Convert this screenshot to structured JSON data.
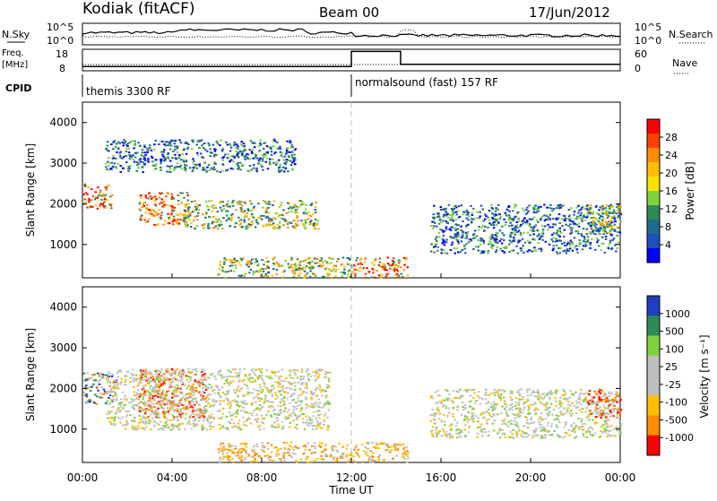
{
  "header": {
    "station": "Kodiak (fitACF)",
    "beam": "Beam 00",
    "date": "17/Jun/2012"
  },
  "top_panels": {
    "nsky_label": "N.Sky",
    "nsearch_label": "N.Search",
    "noise_ticks_left": [
      "10^5",
      "10^0"
    ],
    "noise_ticks_right": [
      "10^5",
      "10^0"
    ],
    "freq_label_1": "Freq.",
    "freq_label_2": "[MHz]",
    "freq_ticks": [
      "18",
      "8"
    ],
    "nave_label": "Nave",
    "nave_ticks": [
      "60",
      "0"
    ],
    "cpid_label": "CPID",
    "cpid_programs": [
      {
        "name": "themis 3300 RF",
        "start_hour": 0
      },
      {
        "name": "normalsound (fast) 157 RF",
        "start_hour": 12
      }
    ]
  },
  "axes": {
    "xlabel": "Time UT",
    "x_ticks": [
      "00:00",
      "04:00",
      "08:00",
      "12:00",
      "16:00",
      "20:00",
      "00:00"
    ],
    "ylabel": "Slant Range [km]",
    "y_ticks": [
      "4000",
      "3000",
      "2000",
      "1000"
    ],
    "power_y_ticks": [
      "4000",
      "3000",
      "2000",
      "1000"
    ],
    "velocity_y_ticks": [
      "4000",
      "3000",
      "2000",
      "1000"
    ]
  },
  "power_colorbar": {
    "label": "Power [dB]",
    "ticks": [
      "28",
      "24",
      "20",
      "16",
      "12",
      "8",
      "4"
    ],
    "colors": [
      "#ff0000",
      "#ff4000",
      "#ff8c00",
      "#ffbf00",
      "#ffe000",
      "#7fd23c",
      "#2e8b57",
      "#1f6b8a",
      "#1f4fbf",
      "#0000ff"
    ]
  },
  "velocity_colorbar": {
    "label": "Velocity [m s⁻¹]",
    "ticks": [
      "1000",
      "500",
      "100",
      "25",
      "-25",
      "-100",
      "-500",
      "-1000"
    ],
    "colors": [
      "#1f3fbf",
      "#2e8b57",
      "#7fd23c",
      "#bebebe",
      "#bebebe",
      "#ffbf00",
      "#ff8c00",
      "#ff0000"
    ]
  },
  "chart_data": [
    {
      "type": "line",
      "title": "",
      "series": [],
      "x": [
        0,
        2,
        4,
        6,
        8,
        10,
        12,
        14,
        16,
        18,
        20,
        22,
        24
      ],
      "ylim": [
        0,
        100000
      ]
    },
    {
      "type": "line",
      "title": "",
      "xlim": [
        0,
        24
      ],
      "series": [],
      "freq_mhz": [
        [
          0,
          10
        ],
        [
          12,
          10
        ],
        [
          12,
          17
        ],
        [
          14.2,
          17
        ],
        [
          14.2,
          11
        ],
        [
          24,
          11
        ]
      ],
      "ylim": [
        8,
        18
      ]
    },
    {
      "type": "heatmap",
      "title": "",
      "xlabel": "Time UT",
      "ylabel": "Slant Range [km]",
      "xlim": [
        0,
        24
      ],
      "ylim": [
        180,
        4500
      ],
      "colorbar": "Power [dB]",
      "echo_regions": [
        {
          "t0": 0.0,
          "t1": 1.3,
          "r0": 1900,
          "r1": 2500,
          "level": "high"
        },
        {
          "t0": 2.5,
          "t1": 4.8,
          "r0": 1500,
          "r1": 2300,
          "level": "high"
        },
        {
          "t0": 4.5,
          "t1": 10.5,
          "r0": 1400,
          "r1": 2100,
          "level": "mid"
        },
        {
          "t0": 1.0,
          "t1": 9.5,
          "r0": 2800,
          "r1": 3600,
          "level": "low"
        },
        {
          "t0": 6.0,
          "t1": 12.0,
          "r0": 200,
          "r1": 700,
          "level": "mid"
        },
        {
          "t0": 12.0,
          "t1": 14.5,
          "r0": 200,
          "r1": 700,
          "level": "high"
        },
        {
          "t0": 15.5,
          "t1": 24.0,
          "r0": 800,
          "r1": 2000,
          "level": "low"
        },
        {
          "t0": 22.5,
          "t1": 24.0,
          "r0": 1300,
          "r1": 2000,
          "level": "mid"
        }
      ]
    },
    {
      "type": "heatmap",
      "title": "",
      "xlabel": "Time UT",
      "ylabel": "Slant Range [km]",
      "xlim": [
        0,
        24
      ],
      "ylim": [
        180,
        4500
      ],
      "colorbar": "Velocity [m s⁻¹]",
      "echo_regions": [
        {
          "t0": 2.5,
          "t1": 5.5,
          "r0": 1300,
          "r1": 2500,
          "level": "negative-strong"
        },
        {
          "t0": 0.0,
          "t1": 1.5,
          "r0": 1600,
          "r1": 2400,
          "level": "mixed"
        },
        {
          "t0": 1.0,
          "t1": 11.0,
          "r0": 1000,
          "r1": 2500,
          "level": "ground"
        },
        {
          "t0": 6.0,
          "t1": 12.0,
          "r0": 200,
          "r1": 700,
          "level": "negative"
        },
        {
          "t0": 12.0,
          "t1": 14.5,
          "r0": 200,
          "r1": 700,
          "level": "negative"
        },
        {
          "t0": 15.5,
          "t1": 24.0,
          "r0": 800,
          "r1": 2000,
          "level": "ground"
        },
        {
          "t0": 22.5,
          "t1": 24.0,
          "r0": 1300,
          "r1": 2000,
          "level": "negative-strong"
        }
      ]
    }
  ]
}
